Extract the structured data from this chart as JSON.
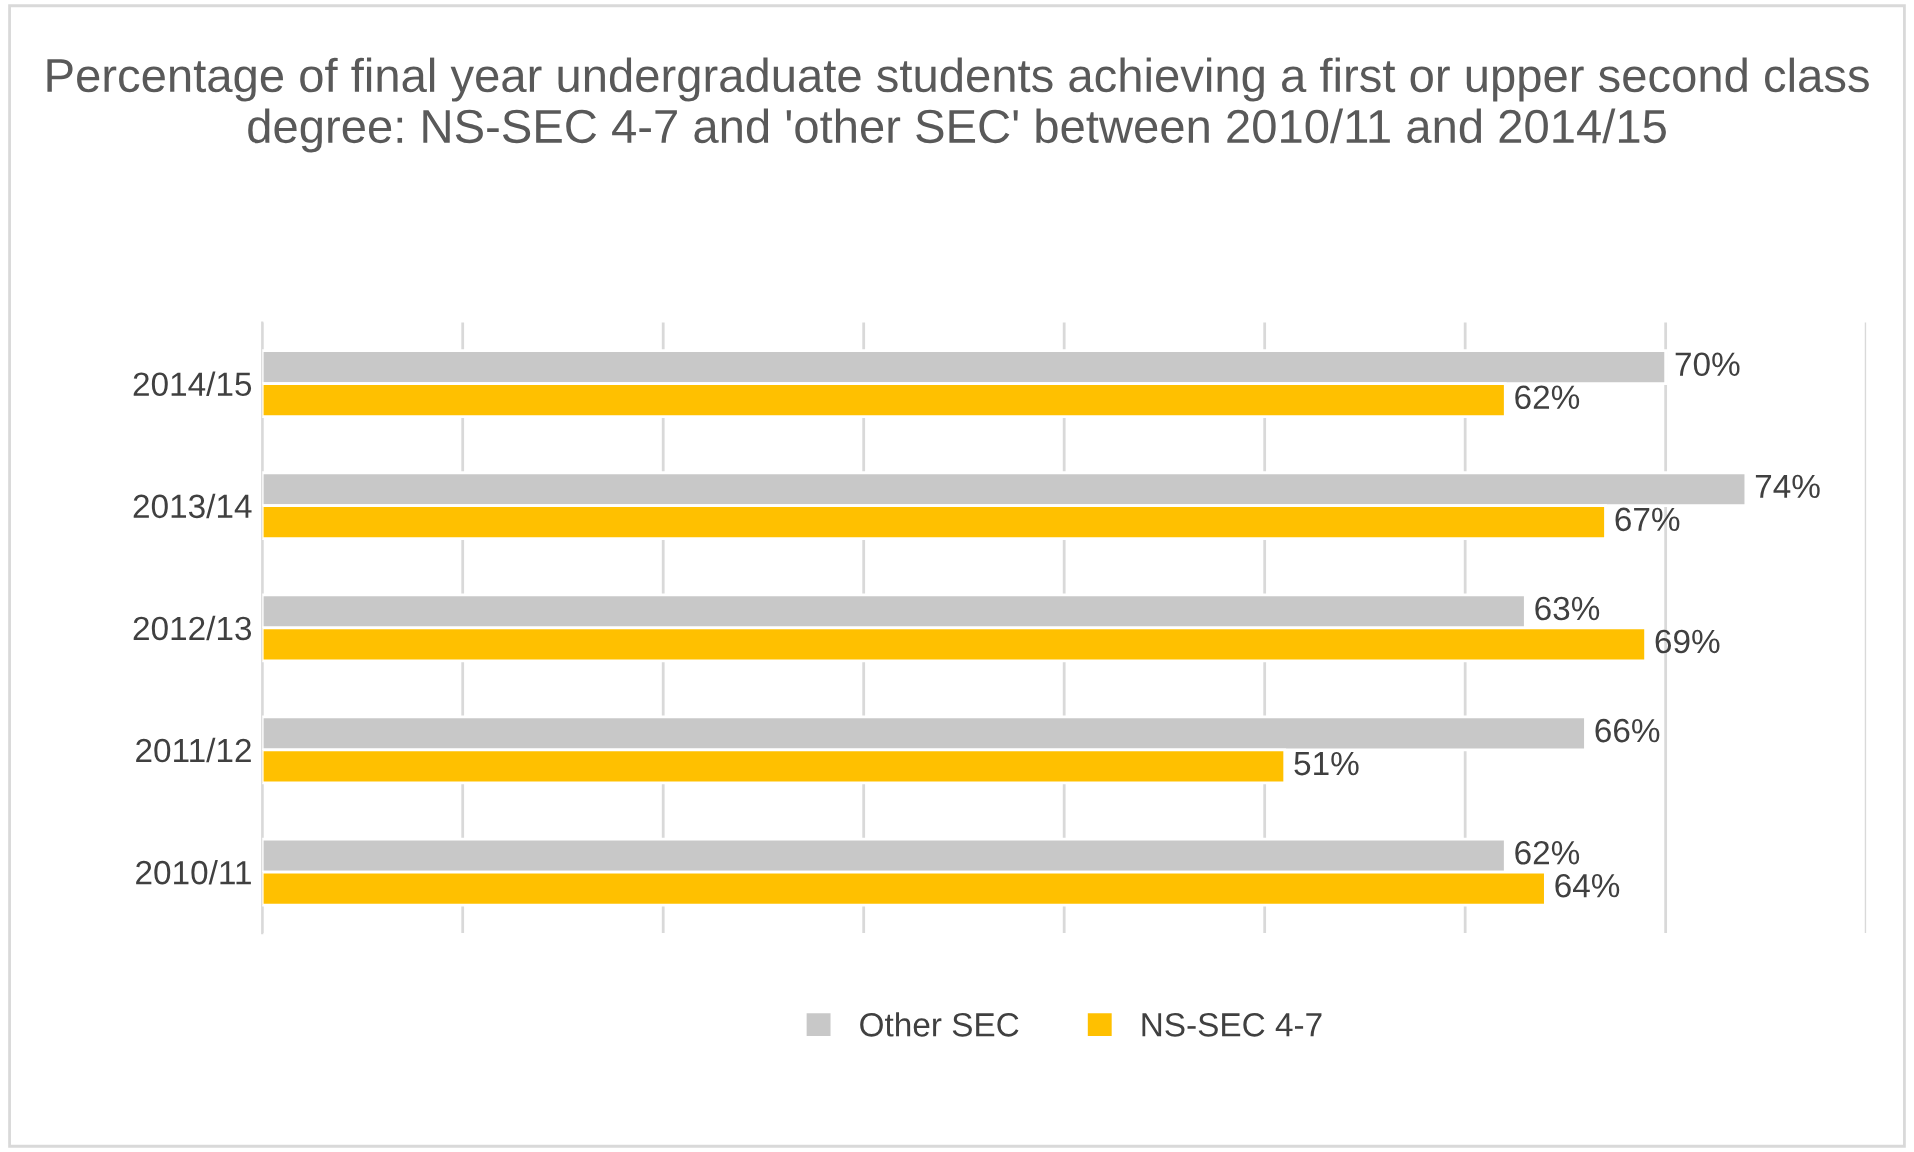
{
  "chart_data": {
    "type": "bar",
    "orientation": "horizontal",
    "title": "Percentage of final year undergraduate students achieving a first or upper second class degree: NS-SEC 4-7 and 'other SEC' between 2010/11 and 2014/15",
    "categories": [
      "2014/15",
      "2013/14",
      "2012/13",
      "2011/12",
      "2010/11"
    ],
    "series": [
      {
        "name": "Other SEC",
        "color": "#c8c8c8",
        "values": [
          70,
          74,
          63,
          66,
          62
        ],
        "value_labels": [
          "70%",
          "74%",
          "63%",
          "66%",
          "62%"
        ]
      },
      {
        "name": "NS-SEC 4-7",
        "color": "#ffc000",
        "values": [
          62,
          67,
          69,
          51,
          64
        ],
        "value_labels": [
          "62%",
          "67%",
          "69%",
          "51%",
          "64%"
        ]
      }
    ],
    "xlim": [
      0,
      80
    ],
    "xticks": [
      {
        "value": 0,
        "label": null
      },
      {
        "value": 10,
        "label": null
      },
      {
        "value": 20,
        "label": null
      },
      {
        "value": 30,
        "label": null
      },
      {
        "value": 40,
        "label": null
      },
      {
        "value": 50,
        "label": null
      },
      {
        "value": 60,
        "label": null
      },
      {
        "value": 70,
        "label": null
      },
      {
        "value": 80,
        "label": null
      }
    ],
    "tick_labels": "y",
    "grid": "x",
    "legend": "bottom"
  }
}
